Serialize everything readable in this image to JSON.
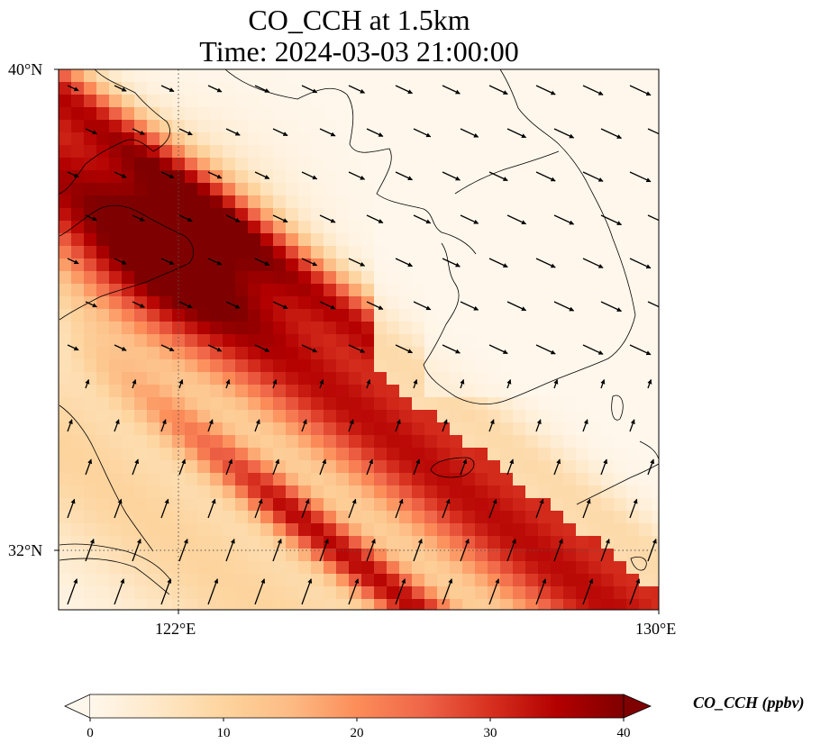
{
  "title": {
    "line1": "CO_CCH at 1.5km",
    "line2": "Time: 2024-03-03 21:00:00"
  },
  "axes": {
    "lat_top": "40°N",
    "lat_bottom": "32°N",
    "lon_left": "122°E",
    "lon_right": "130°E"
  },
  "colorbar": {
    "label": "CO_CCH (ppbv)",
    "ticks": [
      "0",
      "10",
      "20",
      "30",
      "40"
    ],
    "min": 0,
    "max": 40,
    "extend": "both",
    "colormap": "OrRd",
    "colors": [
      "#fff7ec",
      "#fee8c8",
      "#fdd49e",
      "#fdbb84",
      "#fc8d59",
      "#ef6548",
      "#d7301f",
      "#b30000",
      "#7f0000"
    ]
  },
  "map": {
    "extent": {
      "lon_min": 120,
      "lon_max": 130,
      "lat_min": 31,
      "lat_max": 40
    },
    "gridlines": {
      "lon": 122,
      "lat": 32,
      "style": "dotted"
    },
    "plume_axis_deg_lon_per_deg_lat": 1.25,
    "vector_field": "wind arrows",
    "coastline_color": "#000000"
  }
}
